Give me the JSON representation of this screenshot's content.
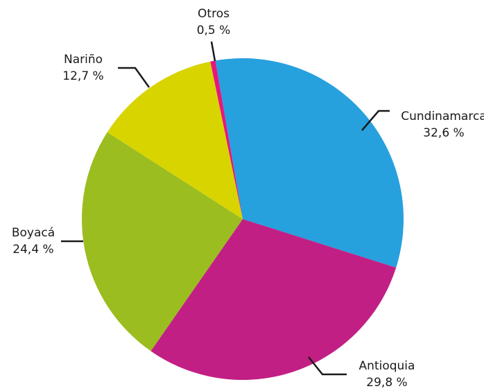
{
  "chart_data": {
    "type": "pie",
    "categories": [
      "Cundinamarca",
      "Antioquia",
      "Boyacá",
      "Nariño",
      "Otros"
    ],
    "values": [
      32.6,
      29.8,
      24.4,
      12.7,
      0.5
    ],
    "value_labels": [
      "32,6 %",
      "29,8 %",
      "24,4 %",
      "12,7 %",
      "0,5 %"
    ],
    "colors": [
      "#27a0de",
      "#c21f85",
      "#9bbd1f",
      "#d8d400",
      "#e5177e"
    ]
  }
}
